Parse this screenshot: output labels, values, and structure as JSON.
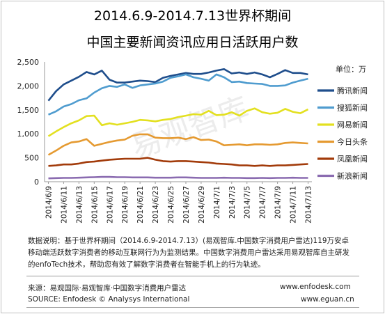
{
  "title_line1": "2014.6.9-2014.7.13世界杯期间",
  "title_line2": "中国主要新闻资讯应用日活跃用户数",
  "watermark": "易观智库",
  "note_lines": [
    "数据说明：基于世界杯期间（2014.6.9-2014.7.13）(易观智库.中国数字消费用户雷达)119万安卓",
    "移动端活跃数字消费者的移动互联网行为为监测结果。中国数字消费用户雷达采用易观智库自主研发",
    "的enfoTech技术，帮助您有效了解数字消费者在智能手机上的行为轨迹。"
  ],
  "footer": {
    "source_cn": "来源：易观国际·易观智库·中国数字消费用户雷达",
    "source_en": "SOURCE: Enfodesk © Analysys International",
    "url1": "www.enfodesk.com",
    "url2": "www.eguan.cn"
  },
  "chart_data": {
    "type": "line",
    "unit_label": "单位：万",
    "ylim": [
      0,
      2500
    ],
    "yticks": [
      "0",
      "500",
      "1,000",
      "1,500",
      "2,000",
      "2,500"
    ],
    "ytick_values": [
      0,
      500,
      1000,
      1500,
      2000,
      2500
    ],
    "x": [
      "2014/6/9",
      "2014/6/10",
      "2014/6/11",
      "2014/6/12",
      "2014/6/13",
      "2014/6/14",
      "2014/6/15",
      "2014/6/16",
      "2014/6/17",
      "2014/6/18",
      "2014/6/19",
      "2014/6/20",
      "2014/6/21",
      "2014/6/22",
      "2014/6/23",
      "2014/6/24",
      "2014/6/25",
      "2014/6/26",
      "2014/6/27",
      "2014/6/28",
      "2014/6/29",
      "2014/6/30",
      "2014/7/1",
      "2014/7/2",
      "2014/7/3",
      "2014/7/4",
      "2014/7/5",
      "2014/7/6",
      "2014/7/7",
      "2014/7/8",
      "2014/7/9",
      "2014/7/10",
      "2014/7/11",
      "2014/7/12",
      "2014/7/13"
    ],
    "xtick_labels": [
      "2014/6/9",
      "2014/6/11",
      "2014/6/13",
      "2014/6/15",
      "2014/6/17",
      "2014/6/19",
      "2014/6/21",
      "2014/6/23",
      "2014/6/25",
      "2014/6/27",
      "2014/6/29",
      "2014/7/1",
      "2014/7/3",
      "2014/7/5",
      "2014/7/7",
      "2014/7/9",
      "2014/7/11",
      "2014/7/13"
    ],
    "legend_position": "right",
    "grid": false,
    "series": [
      {
        "name": "腾讯新闻",
        "color": "#1f4e8c",
        "values": [
          1690,
          1890,
          2030,
          2110,
          2190,
          2290,
          2240,
          2320,
          2130,
          2070,
          2070,
          2090,
          2110,
          2100,
          2080,
          2170,
          2210,
          2240,
          2270,
          2250,
          2250,
          2280,
          2320,
          2350,
          2260,
          2280,
          2250,
          2280,
          2240,
          2180,
          2250,
          2330,
          2270,
          2270,
          2240
        ]
      },
      {
        "name": "搜狐新闻",
        "color": "#4f9ccf",
        "values": [
          1400,
          1470,
          1570,
          1620,
          1700,
          1740,
          1860,
          1950,
          2000,
          1980,
          2030,
          1960,
          2010,
          2030,
          2050,
          2090,
          2170,
          2200,
          2240,
          2180,
          2150,
          2110,
          2240,
          2180,
          2080,
          2090,
          2060,
          2050,
          2040,
          2000,
          2000,
          2010,
          2070,
          2110,
          2150
        ]
      },
      {
        "name": "网易新闻",
        "color": "#e3e020",
        "values": [
          950,
          1050,
          1140,
          1220,
          1280,
          1370,
          1380,
          1180,
          1220,
          1190,
          1220,
          1250,
          1290,
          1280,
          1260,
          1290,
          1310,
          1350,
          1380,
          1410,
          1400,
          1480,
          1390,
          1400,
          1450,
          1380,
          1480,
          1530,
          1450,
          1420,
          1440,
          1520,
          1460,
          1430,
          1510
        ]
      },
      {
        "name": "今日头条",
        "color": "#e59a31",
        "values": [
          560,
          650,
          750,
          820,
          840,
          890,
          750,
          790,
          830,
          860,
          880,
          960,
          990,
          990,
          920,
          910,
          910,
          920,
          890,
          930,
          870,
          880,
          840,
          760,
          770,
          780,
          760,
          780,
          780,
          770,
          780,
          810,
          820,
          810,
          800
        ]
      },
      {
        "name": "凤凰新闻",
        "color": "#a23b0a",
        "values": [
          330,
          340,
          360,
          360,
          380,
          410,
          420,
          440,
          460,
          470,
          480,
          480,
          480,
          500,
          460,
          430,
          420,
          430,
          430,
          420,
          410,
          400,
          380,
          370,
          360,
          340,
          340,
          330,
          340,
          330,
          340,
          340,
          350,
          360,
          370
        ]
      },
      {
        "name": "新浪新闻",
        "color": "#8a6bb0",
        "values": [
          70,
          75,
          80,
          80,
          85,
          90,
          95,
          100,
          100,
          95,
          95,
          90,
          90,
          90,
          85,
          85,
          85,
          90,
          90,
          85,
          80,
          80,
          80,
          85,
          80,
          80,
          75,
          75,
          80,
          75,
          80,
          80,
          85,
          80,
          80
        ]
      }
    ]
  }
}
